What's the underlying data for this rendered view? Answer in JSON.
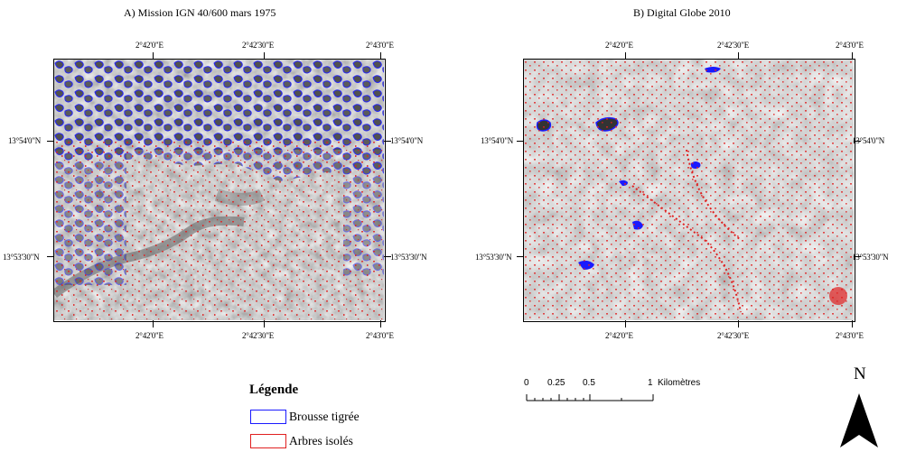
{
  "maps": [
    {
      "title": "A) Mission IGN 40/600 mars 1975",
      "top_labels": [
        "2°42'0\"E",
        "2°42'30\"E",
        "2°43'0\"E"
      ],
      "bottom_labels": [
        "2°42'0\"E",
        "2°42'30\"E",
        "2°43'0\"E"
      ],
      "left_labels": [
        "13°54'0\"N",
        "13°53'30\"N"
      ],
      "right_labels": [
        "13°54'0\"N",
        "13°53'30\"N"
      ]
    },
    {
      "title": "B) Digital Globe 2010",
      "top_labels": [
        "2°42'0\"E",
        "2°42'30\"E",
        "2°43'0\"E"
      ],
      "bottom_labels": [
        "2°42'0\"E",
        "2°42'30\"E",
        "2°43'0\"E"
      ],
      "left_labels": [
        "13°54'0\"N",
        "13°53'30\"N"
      ],
      "right_labels": [
        "13°54'0\"N",
        "13°53'30\"N"
      ]
    }
  ],
  "legend": {
    "title": "Légende",
    "items": [
      {
        "label": "Brousse tigrée",
        "color": "#1a1aff"
      },
      {
        "label": "Arbres isolés",
        "color": "#e02020"
      }
    ]
  },
  "scale_bar": {
    "labels": [
      "0",
      "0.25",
      "0.5",
      "1"
    ],
    "unit": "Kilomètres"
  },
  "north_arrow": {
    "letter": "N"
  },
  "colors": {
    "brousse_tigree": "#1a1aff",
    "arbres_isoles": "#e02020"
  }
}
